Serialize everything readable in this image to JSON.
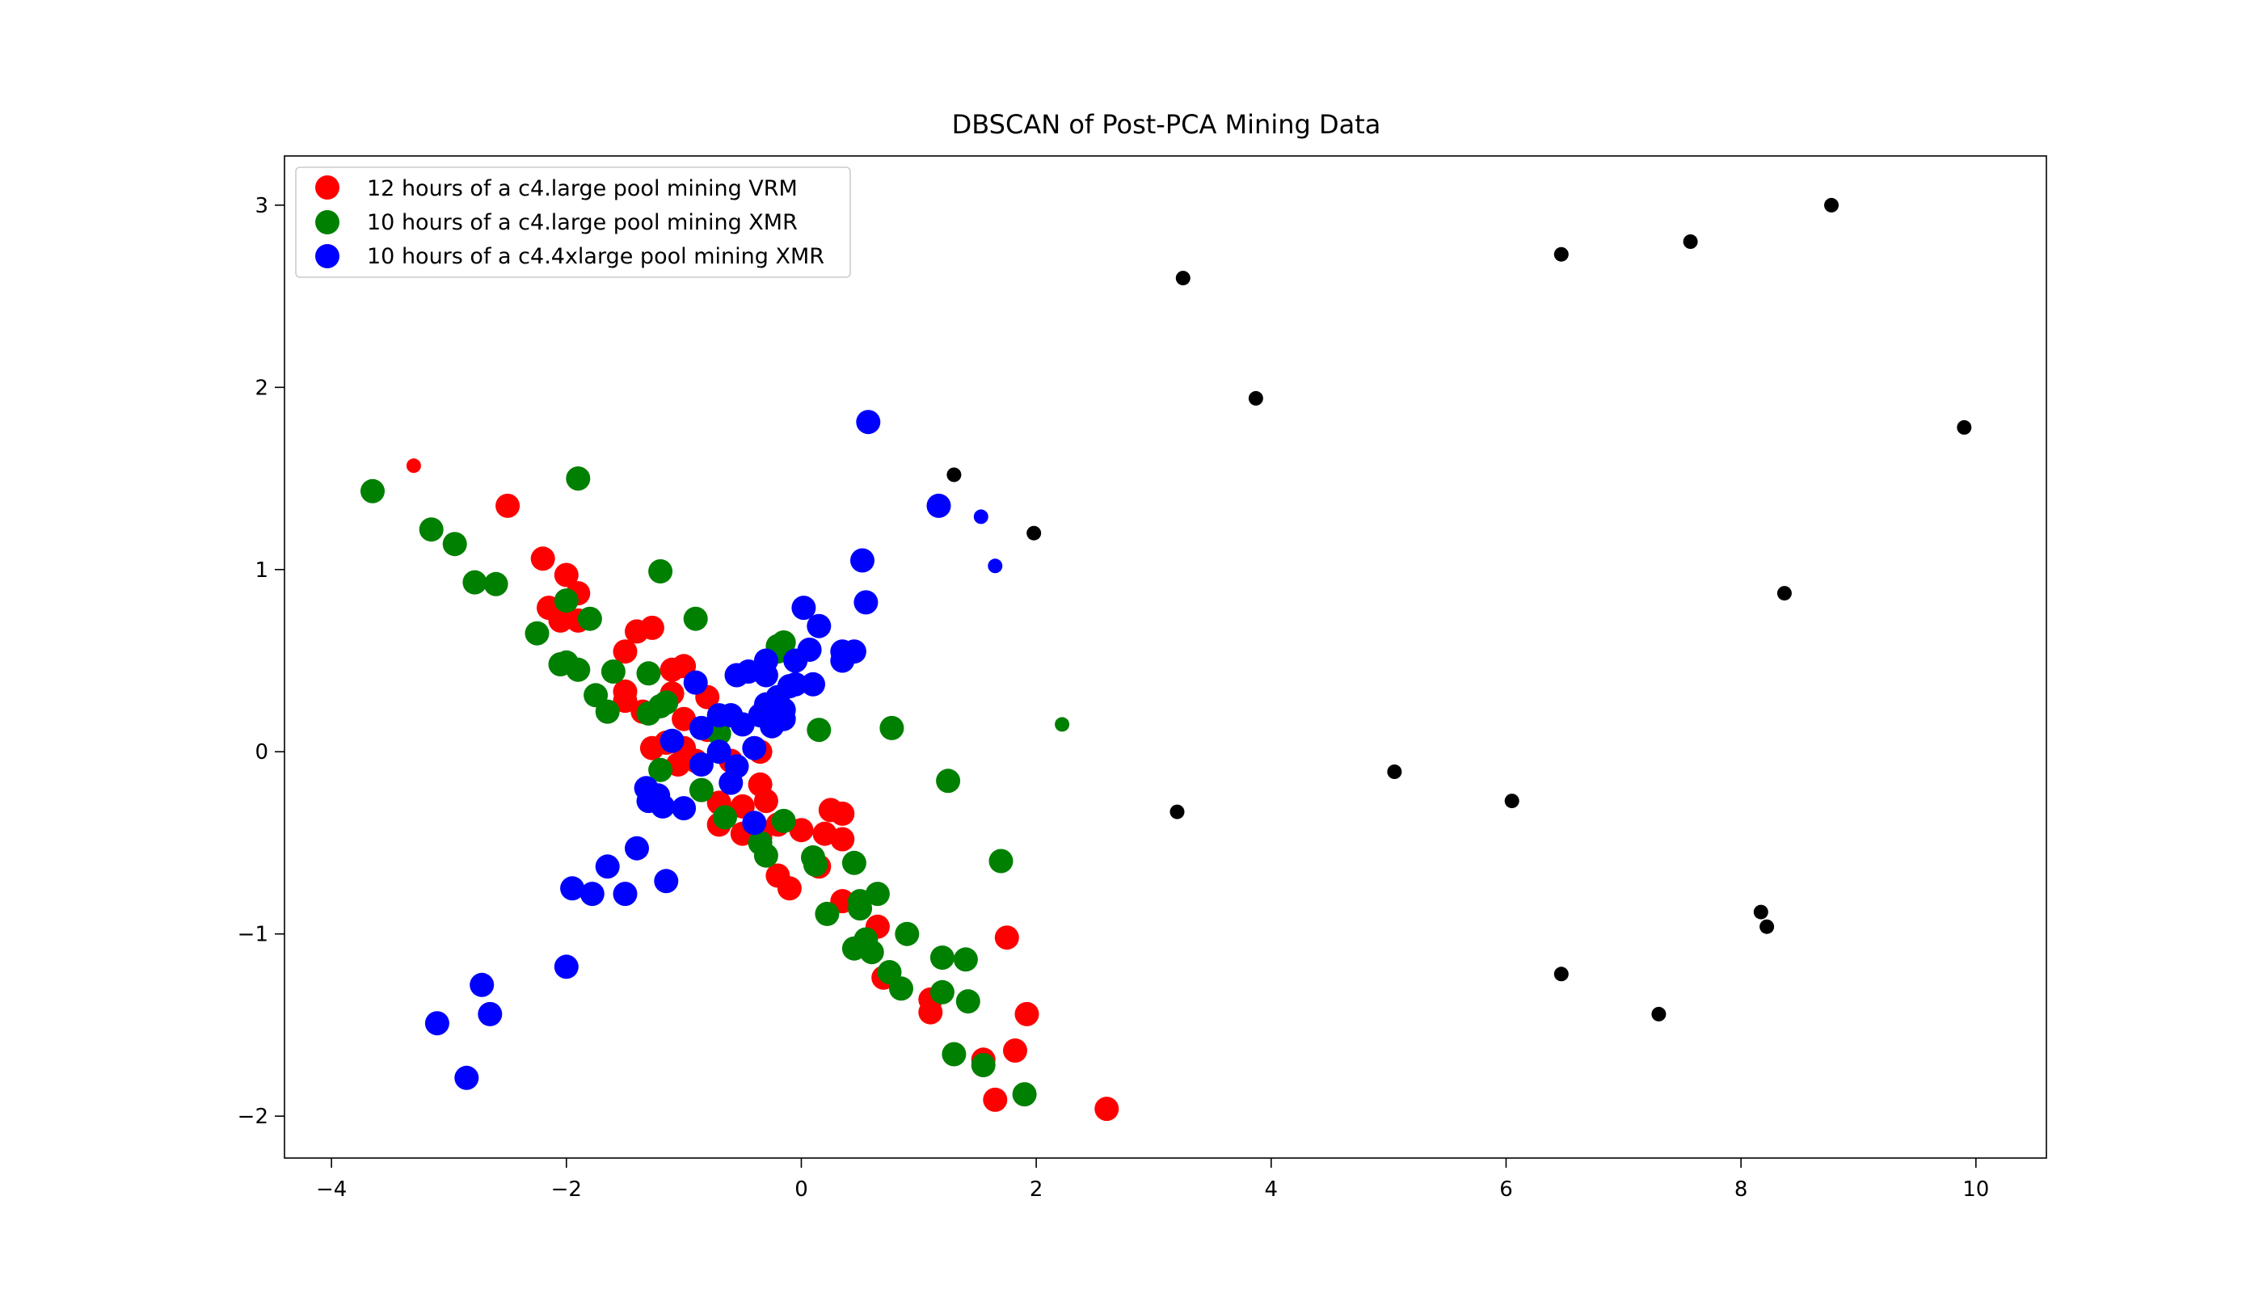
{
  "chart_data": {
    "type": "scatter",
    "title": "DBSCAN of Post-PCA Mining Data",
    "xlabel": "",
    "ylabel": "",
    "xlim": [
      -4.4,
      10.6
    ],
    "ylim": [
      -2.23,
      3.27
    ],
    "xticks": [
      -4,
      -2,
      0,
      2,
      4,
      6,
      8,
      10
    ],
    "xtick_labels": [
      "−4",
      "−2",
      "0",
      "2",
      "4",
      "6",
      "8",
      "10"
    ],
    "yticks": [
      -2,
      -1,
      0,
      1,
      2,
      3
    ],
    "ytick_labels": [
      "−2",
      "−1",
      "0",
      "1",
      "2",
      "3"
    ],
    "grid": false,
    "legend_position": "upper-left",
    "series": [
      {
        "name": "12 hours of a c4.large pool mining VRM",
        "color": "#ff0000",
        "marker": "large-circle",
        "points": [
          [
            -2.5,
            1.35
          ],
          [
            -2.2,
            1.06
          ],
          [
            -2.0,
            0.97
          ],
          [
            -1.9,
            0.87
          ],
          [
            -2.15,
            0.79
          ],
          [
            -2.05,
            0.72
          ],
          [
            -1.9,
            0.72
          ],
          [
            -1.5,
            0.55
          ],
          [
            -1.4,
            0.66
          ],
          [
            -1.27,
            0.68
          ],
          [
            -1.1,
            0.45
          ],
          [
            -1.0,
            0.47
          ],
          [
            -1.5,
            0.33
          ],
          [
            -1.5,
            0.28
          ],
          [
            -1.1,
            0.32
          ],
          [
            -0.8,
            0.3
          ],
          [
            -1.35,
            0.22
          ],
          [
            -1.0,
            0.18
          ],
          [
            -0.8,
            0.12
          ],
          [
            -1.27,
            0.02
          ],
          [
            -1.15,
            0.05
          ],
          [
            -1.0,
            0.02
          ],
          [
            -1.05,
            -0.07
          ],
          [
            -0.9,
            -0.05
          ],
          [
            -0.6,
            -0.05
          ],
          [
            -0.35,
            0.0
          ],
          [
            -0.35,
            -0.18
          ],
          [
            -0.7,
            -0.28
          ],
          [
            -0.5,
            -0.3
          ],
          [
            -0.3,
            -0.27
          ],
          [
            -0.2,
            -0.4
          ],
          [
            -0.7,
            -0.4
          ],
          [
            -0.5,
            -0.45
          ],
          [
            -0.35,
            -0.47
          ],
          [
            0.0,
            -0.43
          ],
          [
            0.2,
            -0.45
          ],
          [
            0.25,
            -0.32
          ],
          [
            0.35,
            -0.34
          ],
          [
            0.35,
            -0.48
          ],
          [
            0.15,
            -0.63
          ],
          [
            -0.2,
            -0.68
          ],
          [
            -0.1,
            -0.75
          ],
          [
            0.35,
            -0.82
          ],
          [
            0.65,
            -0.96
          ],
          [
            0.7,
            -1.24
          ],
          [
            1.1,
            -1.36
          ],
          [
            1.1,
            -1.43
          ],
          [
            1.75,
            -1.02
          ],
          [
            1.92,
            -1.44
          ],
          [
            1.82,
            -1.64
          ],
          [
            1.55,
            -1.69
          ],
          [
            1.65,
            -1.91
          ],
          [
            2.6,
            -1.96
          ]
        ]
      },
      {
        "name": "10 hours of a c4.large pool mining XMR",
        "color": "#008000",
        "marker": "large-circle",
        "points": [
          [
            -3.65,
            1.43
          ],
          [
            -3.15,
            1.22
          ],
          [
            -2.95,
            1.14
          ],
          [
            -2.78,
            0.93
          ],
          [
            -2.6,
            0.92
          ],
          [
            -1.9,
            1.5
          ],
          [
            -2.0,
            0.83
          ],
          [
            -1.8,
            0.73
          ],
          [
            -2.25,
            0.65
          ],
          [
            -2.05,
            0.48
          ],
          [
            -2.0,
            0.49
          ],
          [
            -1.9,
            0.45
          ],
          [
            -1.75,
            0.31
          ],
          [
            -1.65,
            0.22
          ],
          [
            -1.6,
            0.44
          ],
          [
            -1.3,
            0.43
          ],
          [
            -1.2,
            0.99
          ],
          [
            -0.9,
            0.73
          ],
          [
            -1.3,
            0.21
          ],
          [
            -1.2,
            0.25
          ],
          [
            -1.15,
            0.27
          ],
          [
            -1.2,
            -0.1
          ],
          [
            -0.85,
            -0.21
          ],
          [
            -0.65,
            -0.36
          ],
          [
            -0.35,
            -0.5
          ],
          [
            -0.3,
            -0.57
          ],
          [
            -0.15,
            -0.38
          ],
          [
            0.1,
            -0.58
          ],
          [
            0.12,
            -0.62
          ],
          [
            0.45,
            -0.61
          ],
          [
            0.22,
            -0.89
          ],
          [
            0.5,
            -0.82
          ],
          [
            0.5,
            -0.86
          ],
          [
            0.65,
            -0.78
          ],
          [
            0.45,
            -1.08
          ],
          [
            0.55,
            -1.03
          ],
          [
            0.6,
            -1.1
          ],
          [
            0.75,
            -1.21
          ],
          [
            0.85,
            -1.3
          ],
          [
            0.9,
            -1.0
          ],
          [
            1.2,
            -1.13
          ],
          [
            1.2,
            -1.32
          ],
          [
            1.4,
            -1.14
          ],
          [
            1.42,
            -1.37
          ],
          [
            1.3,
            -1.66
          ],
          [
            1.55,
            -1.72
          ],
          [
            1.9,
            -1.88
          ],
          [
            1.7,
            -0.6
          ],
          [
            1.25,
            -0.16
          ],
          [
            0.77,
            0.13
          ],
          [
            0.15,
            0.12
          ],
          [
            -0.15,
            0.6
          ],
          [
            -0.2,
            0.55
          ],
          [
            -0.2,
            0.58
          ],
          [
            -0.6,
            0.2
          ],
          [
            -0.7,
            0.1
          ]
        ]
      },
      {
        "name": "10 hours of a c4.4xlarge pool mining XMR",
        "color": "#0000ff",
        "marker": "large-circle",
        "points": [
          [
            0.57,
            1.81
          ],
          [
            1.17,
            1.35
          ],
          [
            0.52,
            1.05
          ],
          [
            0.55,
            0.82
          ],
          [
            0.02,
            0.79
          ],
          [
            0.15,
            0.69
          ],
          [
            0.07,
            0.56
          ],
          [
            0.35,
            0.55
          ],
          [
            0.45,
            0.55
          ],
          [
            0.35,
            0.5
          ],
          [
            -0.05,
            0.5
          ],
          [
            -0.3,
            0.5
          ],
          [
            -0.45,
            0.44
          ],
          [
            -0.55,
            0.42
          ],
          [
            -0.3,
            0.42
          ],
          [
            -0.1,
            0.36
          ],
          [
            -0.05,
            0.37
          ],
          [
            0.1,
            0.37
          ],
          [
            -0.2,
            0.3
          ],
          [
            -0.3,
            0.26
          ],
          [
            -0.15,
            0.23
          ],
          [
            -0.35,
            0.2
          ],
          [
            -0.6,
            0.2
          ],
          [
            -0.7,
            0.2
          ],
          [
            -0.5,
            0.15
          ],
          [
            -0.25,
            0.14
          ],
          [
            -0.15,
            0.18
          ],
          [
            -0.85,
            0.13
          ],
          [
            -0.4,
            0.02
          ],
          [
            -1.1,
            0.06
          ],
          [
            -0.7,
            0.0
          ],
          [
            -0.85,
            -0.07
          ],
          [
            -0.55,
            -0.08
          ],
          [
            -0.6,
            -0.17
          ],
          [
            -1.32,
            -0.2
          ],
          [
            -1.22,
            -0.24
          ],
          [
            -1.3,
            -0.27
          ],
          [
            -1.18,
            -0.3
          ],
          [
            -1.0,
            -0.31
          ],
          [
            -0.4,
            -0.39
          ],
          [
            -0.9,
            0.38
          ],
          [
            -1.4,
            -0.53
          ],
          [
            -1.65,
            -0.63
          ],
          [
            -1.15,
            -0.71
          ],
          [
            -1.95,
            -0.75
          ],
          [
            -1.78,
            -0.78
          ],
          [
            -1.5,
            -0.78
          ],
          [
            -2.0,
            -1.18
          ],
          [
            -2.72,
            -1.28
          ],
          [
            -2.65,
            -1.44
          ],
          [
            -3.1,
            -1.49
          ],
          [
            -2.85,
            -1.79
          ]
        ]
      },
      {
        "name": "",
        "color": "#ff0000",
        "marker": "small-circle",
        "points": [
          [
            -3.3,
            1.57
          ]
        ]
      },
      {
        "name": "",
        "color": "#008000",
        "marker": "small-circle",
        "points": [
          [
            2.22,
            0.15
          ]
        ]
      },
      {
        "name": "",
        "color": "#0000ff",
        "marker": "small-circle",
        "points": [
          [
            1.53,
            1.29
          ],
          [
            1.65,
            1.02
          ]
        ]
      },
      {
        "name": "",
        "color": "#000000",
        "marker": "small-circle",
        "points": [
          [
            3.25,
            2.6
          ],
          [
            3.87,
            1.94
          ],
          [
            1.3,
            1.52
          ],
          [
            1.98,
            1.2
          ],
          [
            6.47,
            2.73
          ],
          [
            7.57,
            2.8
          ],
          [
            8.77,
            3.0
          ],
          [
            9.9,
            1.78
          ],
          [
            8.37,
            0.87
          ],
          [
            5.05,
            -0.11
          ],
          [
            6.05,
            -0.27
          ],
          [
            3.2,
            -0.33
          ],
          [
            8.17,
            -0.88
          ],
          [
            8.22,
            -0.96
          ],
          [
            6.47,
            -1.22
          ],
          [
            7.3,
            -1.44
          ]
        ]
      }
    ]
  }
}
